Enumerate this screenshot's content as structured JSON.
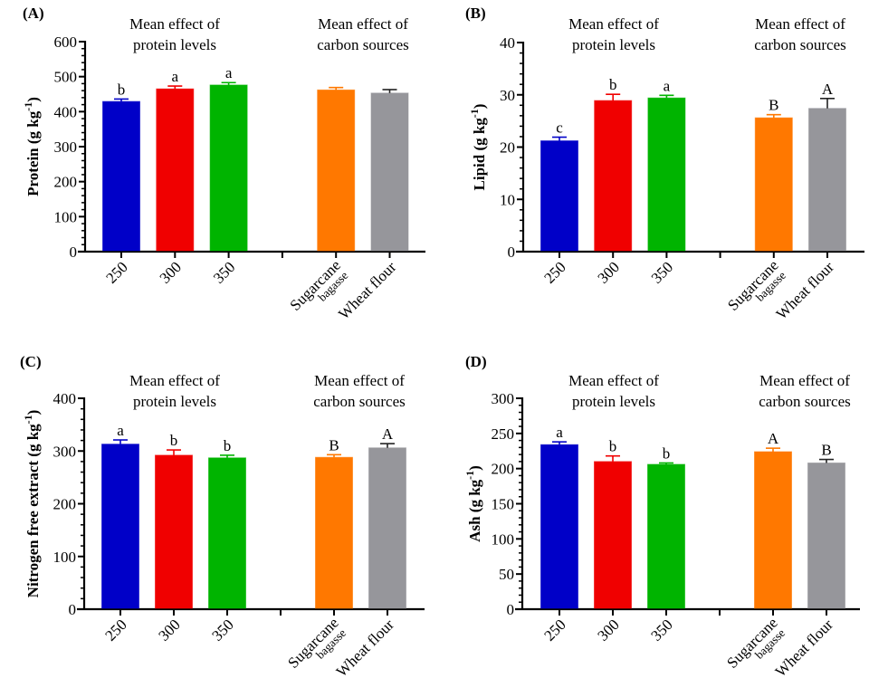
{
  "colors": {
    "250": "#0000c8",
    "300": "#f00000",
    "350": "#00b400",
    "Sugarcane bagasse": "#ff7800",
    "Wheat flour": "#96969b"
  },
  "chart_data": [
    {
      "id": "A",
      "type": "bar",
      "panel_label": "(A)",
      "ylabel": "Protein (g kg",
      "ylabel_sup": "-1",
      "ylabel_close": ")",
      "ylim": [
        0,
        600
      ],
      "yticks": [
        0,
        100,
        200,
        300,
        400,
        500,
        600
      ],
      "minor_per_major": 4,
      "group_titles": [
        [
          "Mean effect of",
          "protein levels"
        ],
        [
          "Mean effect of",
          "carbon sources"
        ]
      ],
      "categories": [
        "250",
        "300",
        "350",
        "Sugarcane bagasse",
        "Wheat flour"
      ],
      "values": [
        429,
        465,
        476,
        462,
        453
      ],
      "errors": [
        7,
        8,
        7,
        7,
        10
      ],
      "letters": [
        "b",
        "a",
        "a",
        "",
        ""
      ]
    },
    {
      "id": "B",
      "type": "bar",
      "panel_label": "(B)",
      "ylabel": "Lipid (g kg",
      "ylabel_sup": "-1",
      "ylabel_close": ")",
      "ylim": [
        0,
        40
      ],
      "yticks": [
        0,
        10,
        20,
        30,
        40
      ],
      "minor_per_major": 4,
      "group_titles": [
        [
          "Mean effect of",
          "protein levels"
        ],
        [
          "Mean effect of",
          "carbon sources"
        ]
      ],
      "categories": [
        "250",
        "300",
        "350",
        "Sugarcane bagasse",
        "Wheat flour"
      ],
      "values": [
        21.2,
        28.9,
        29.4,
        25.6,
        27.4
      ],
      "errors": [
        0.7,
        1.2,
        0.5,
        0.6,
        1.9
      ],
      "letters": [
        "c",
        "b",
        "a",
        "B",
        "A"
      ]
    },
    {
      "id": "C",
      "type": "bar",
      "panel_label": "(C)",
      "ylabel": "Nitrogen free extract (g kg",
      "ylabel_sup": "-1",
      "ylabel_close": ")",
      "ylim": [
        0,
        400
      ],
      "yticks": [
        0,
        100,
        200,
        300,
        400
      ],
      "minor_per_major": 4,
      "group_titles": [
        [
          "Mean effect of",
          "protein levels"
        ],
        [
          "Mean effect of",
          "carbon sources"
        ]
      ],
      "categories": [
        "250",
        "300",
        "350",
        "Sugarcane bagasse",
        "Wheat flour"
      ],
      "values": [
        313,
        292,
        287,
        288,
        306
      ],
      "errors": [
        8,
        10,
        5,
        5,
        8
      ],
      "letters": [
        "a",
        "b",
        "b",
        "B",
        "A"
      ]
    },
    {
      "id": "D",
      "type": "bar",
      "panel_label": "(D)",
      "ylabel": "Ash (g kg",
      "ylabel_sup": "-1",
      "ylabel_close": ")",
      "ylim": [
        0,
        300
      ],
      "yticks": [
        0,
        50,
        100,
        150,
        200,
        250,
        300
      ],
      "minor_per_major": 4,
      "group_titles": [
        [
          "Mean effect of",
          "protein levels"
        ],
        [
          "Mean effect of",
          "carbon sources"
        ]
      ],
      "categories": [
        "250",
        "300",
        "350",
        "Sugarcane bagasse",
        "Wheat flour"
      ],
      "values": [
        234,
        210,
        206,
        224,
        208
      ],
      "errors": [
        4,
        8,
        2,
        5,
        5
      ],
      "letters": [
        "a",
        "b",
        "b",
        "A",
        "B"
      ]
    }
  ]
}
